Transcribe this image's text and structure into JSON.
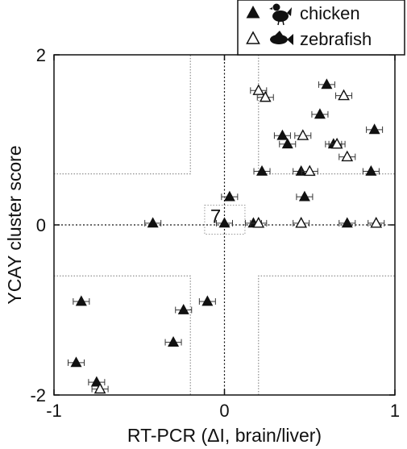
{
  "chart_data": {
    "type": "scatter",
    "title": "",
    "xlabel": "RT-PCR (ΔI, brain/liver)",
    "ylabel": "YCAY cluster score",
    "xlim": [
      -1,
      1
    ],
    "ylim": [
      -2,
      2
    ],
    "x_tick_labels": [
      "-1",
      "0",
      "1"
    ],
    "y_tick_labels": [
      "2",
      "0",
      "-2"
    ],
    "x_ticks": [
      -1,
      0,
      1
    ],
    "y_ticks": [
      2,
      0,
      -2
    ],
    "grid": false,
    "reference_lines": {
      "x": [
        0
      ],
      "y": [
        0
      ]
    },
    "threshold_regions": {
      "x": [
        -0.2,
        0.2
      ],
      "y": [
        -0.6,
        0.6
      ]
    },
    "legend": {
      "placement": "top-right",
      "entries": [
        {
          "label": "chicken",
          "marker": "filled-triangle",
          "icon": "chicken-icon"
        },
        {
          "label": "zebrafish",
          "marker": "open-triangle",
          "icon": "fish-icon"
        }
      ]
    },
    "annotations": [
      {
        "text": "7",
        "x": -0.05,
        "y": 0.1
      }
    ],
    "series": [
      {
        "name": "chicken",
        "marker": "filled",
        "points": [
          {
            "x": 0.6,
            "y": 1.65
          },
          {
            "x": 0.56,
            "y": 1.3
          },
          {
            "x": 0.34,
            "y": 1.05
          },
          {
            "x": 0.37,
            "y": 0.95
          },
          {
            "x": 0.64,
            "y": 0.95
          },
          {
            "x": 0.88,
            "y": 1.12
          },
          {
            "x": 0.22,
            "y": 0.63
          },
          {
            "x": 0.45,
            "y": 0.63
          },
          {
            "x": 0.86,
            "y": 0.63
          },
          {
            "x": 0.47,
            "y": 0.33
          },
          {
            "x": 0.03,
            "y": 0.33
          },
          {
            "x": 0.0,
            "y": 0.02
          },
          {
            "x": 0.17,
            "y": 0.02
          },
          {
            "x": 0.72,
            "y": 0.02
          },
          {
            "x": -0.42,
            "y": 0.02
          },
          {
            "x": -0.84,
            "y": -0.9
          },
          {
            "x": -0.1,
            "y": -0.9
          },
          {
            "x": -0.24,
            "y": -1.0
          },
          {
            "x": -0.3,
            "y": -1.38
          },
          {
            "x": -0.87,
            "y": -1.62
          },
          {
            "x": -0.75,
            "y": -1.85
          }
        ]
      },
      {
        "name": "zebrafish",
        "marker": "open",
        "points": [
          {
            "x": 0.2,
            "y": 1.58
          },
          {
            "x": 0.24,
            "y": 1.5
          },
          {
            "x": 0.7,
            "y": 1.52
          },
          {
            "x": 0.46,
            "y": 1.05
          },
          {
            "x": 0.66,
            "y": 0.95
          },
          {
            "x": 0.72,
            "y": 0.8
          },
          {
            "x": 0.5,
            "y": 0.63
          },
          {
            "x": 0.2,
            "y": 0.02
          },
          {
            "x": 0.45,
            "y": 0.02
          },
          {
            "x": 0.89,
            "y": 0.02
          },
          {
            "x": -0.73,
            "y": -1.93
          }
        ]
      }
    ]
  }
}
